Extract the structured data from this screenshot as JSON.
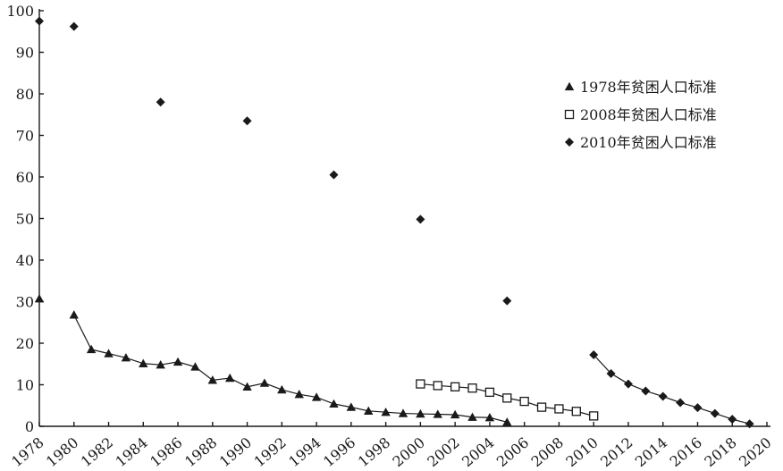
{
  "chart_data": {
    "type": "scatter",
    "xlim": [
      1978,
      2020
    ],
    "ylim": [
      0,
      100
    ],
    "x_ticks": [
      "1978",
      "1980",
      "1982",
      "1984",
      "1986",
      "1988",
      "1990",
      "1992",
      "1994",
      "1996",
      "1998",
      "2000",
      "2002",
      "2004",
      "2006",
      "2008",
      "2010",
      "2012",
      "2014",
      "2016",
      "2018",
      "2020"
    ],
    "y_ticks": [
      "0",
      "10",
      "20",
      "30",
      "40",
      "50",
      "60",
      "70",
      "80",
      "90",
      "100"
    ],
    "grid": false,
    "legend_position": "right",
    "series": [
      {
        "name": "1978年贫困人口标准",
        "marker": "triangle",
        "color": "#1a1a1a",
        "connected_from_index": 1,
        "x": [
          1978,
          1980,
          1981,
          1982,
          1983,
          1984,
          1985,
          1986,
          1987,
          1988,
          1989,
          1990,
          1991,
          1992,
          1993,
          1994,
          1995,
          1996,
          1997,
          1998,
          1999,
          2000,
          2001,
          2002,
          2003,
          2004,
          2005
        ],
        "y": [
          30.7,
          26.8,
          18.5,
          17.5,
          16.5,
          15.1,
          14.8,
          15.5,
          14.3,
          11.1,
          11.6,
          9.5,
          10.4,
          8.8,
          7.7,
          7.0,
          5.4,
          4.6,
          3.7,
          3.4,
          3.1,
          3.0,
          2.9,
          2.8,
          2.2,
          2.1,
          1.0
        ]
      },
      {
        "name": "2008年贫困人口标准",
        "marker": "square-open",
        "color": "#1a1a1a",
        "connected_from_index": 0,
        "x": [
          2000,
          2001,
          2002,
          2003,
          2004,
          2005,
          2006,
          2007,
          2008,
          2009,
          2010
        ],
        "y": [
          10.2,
          9.8,
          9.5,
          9.2,
          8.2,
          6.8,
          6.0,
          4.6,
          4.2,
          3.6,
          2.5
        ]
      },
      {
        "name": "2010年贫困人口标准",
        "marker": "diamond",
        "color": "#1a1a1a",
        "unconnected_count": 7,
        "x": [
          1978,
          1980,
          1985,
          1990,
          1995,
          2000,
          2005,
          2010,
          2011,
          2012,
          2013,
          2014,
          2015,
          2016,
          2017,
          2018,
          2019
        ],
        "y": [
          97.5,
          96.2,
          78.0,
          73.5,
          60.5,
          49.8,
          30.2,
          17.2,
          12.7,
          10.2,
          8.5,
          7.2,
          5.7,
          4.5,
          3.1,
          1.7,
          0.6
        ]
      }
    ]
  }
}
